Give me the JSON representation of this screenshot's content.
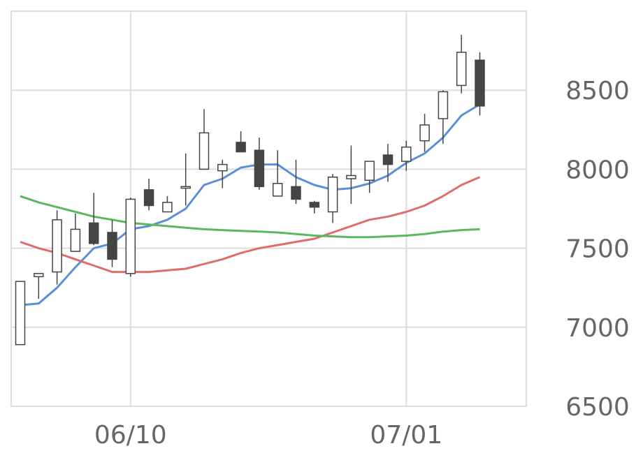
{
  "chart_data": {
    "type": "candlestick",
    "xlabel": "",
    "ylabel": "",
    "ylim": [
      6500,
      9000
    ],
    "y_ticks": [
      6500,
      7000,
      7500,
      8000,
      8500
    ],
    "y_tick_labels": [
      "6500",
      "7000",
      "7500",
      "8000",
      "8500"
    ],
    "x_ticks": [
      {
        "index": 6,
        "label": "06/10"
      },
      {
        "index": 21,
        "label": "07/01"
      }
    ],
    "grid": true,
    "y_axis_position": "right",
    "candles": [
      {
        "open": 6890,
        "high": 7290,
        "low": 6890,
        "close": 7290
      },
      {
        "open": 7320,
        "high": 7340,
        "low": 7180,
        "close": 7340
      },
      {
        "open": 7350,
        "high": 7740,
        "low": 7270,
        "close": 7680
      },
      {
        "open": 7480,
        "high": 7720,
        "low": 7480,
        "close": 7620
      },
      {
        "open": 7660,
        "high": 7850,
        "low": 7520,
        "close": 7530
      },
      {
        "open": 7600,
        "high": 7680,
        "low": 7380,
        "close": 7430
      },
      {
        "open": 7340,
        "high": 7820,
        "low": 7320,
        "close": 7810
      },
      {
        "open": 7870,
        "high": 7940,
        "low": 7740,
        "close": 7770
      },
      {
        "open": 7730,
        "high": 7830,
        "low": 7730,
        "close": 7790
      },
      {
        "open": 7880,
        "high": 8100,
        "low": 7770,
        "close": 7890
      },
      {
        "open": 8000,
        "high": 8380,
        "low": 8000,
        "close": 8230
      },
      {
        "open": 7990,
        "high": 8060,
        "low": 7880,
        "close": 8030
      },
      {
        "open": 8170,
        "high": 8240,
        "low": 8120,
        "close": 8110
      },
      {
        "open": 8120,
        "high": 8200,
        "low": 7870,
        "close": 7890
      },
      {
        "open": 7830,
        "high": 8120,
        "low": 7830,
        "close": 7910
      },
      {
        "open": 7890,
        "high": 8060,
        "low": 7780,
        "close": 7810
      },
      {
        "open": 7790,
        "high": 7800,
        "low": 7720,
        "close": 7760
      },
      {
        "open": 7730,
        "high": 7970,
        "low": 7660,
        "close": 7950
      },
      {
        "open": 7940,
        "high": 8150,
        "low": 7780,
        "close": 7960
      },
      {
        "open": 7930,
        "high": 8050,
        "low": 7850,
        "close": 8050
      },
      {
        "open": 8090,
        "high": 8160,
        "low": 7920,
        "close": 8030
      },
      {
        "open": 8050,
        "high": 8180,
        "low": 7990,
        "close": 8140
      },
      {
        "open": 8180,
        "high": 8350,
        "low": 8110,
        "close": 8280
      },
      {
        "open": 8320,
        "high": 8500,
        "low": 8160,
        "close": 8490
      },
      {
        "open": 8530,
        "high": 8850,
        "low": 8480,
        "close": 8740
      },
      {
        "open": 8690,
        "high": 8740,
        "low": 8340,
        "close": 8400
      }
    ],
    "series": [
      {
        "color": "#5b8fd6",
        "values": [
          7140,
          7150,
          7250,
          7380,
          7500,
          7530,
          7620,
          7640,
          7680,
          7750,
          7900,
          7940,
          8010,
          8030,
          8030,
          7950,
          7900,
          7870,
          7880,
          7910,
          7960,
          8040,
          8100,
          8200,
          8340,
          8410
        ]
      },
      {
        "color": "#e06c6c",
        "values": [
          7540,
          7500,
          7470,
          7430,
          7390,
          7350,
          7350,
          7350,
          7360,
          7370,
          7400,
          7430,
          7470,
          7500,
          7520,
          7540,
          7560,
          7600,
          7640,
          7680,
          7700,
          7730,
          7770,
          7830,
          7900,
          7950
        ]
      },
      {
        "color": "#5cb85c",
        "values": [
          7830,
          7790,
          7760,
          7730,
          7700,
          7680,
          7660,
          7650,
          7640,
          7630,
          7620,
          7615,
          7610,
          7605,
          7600,
          7590,
          7580,
          7575,
          7570,
          7570,
          7575,
          7580,
          7590,
          7605,
          7615,
          7620
        ]
      }
    ]
  },
  "colors": {
    "up_fill": "#ffffff",
    "down_fill": "#454545",
    "candle_outline": "#454545",
    "grid": "#dddddd",
    "tick_text": "#666666"
  }
}
